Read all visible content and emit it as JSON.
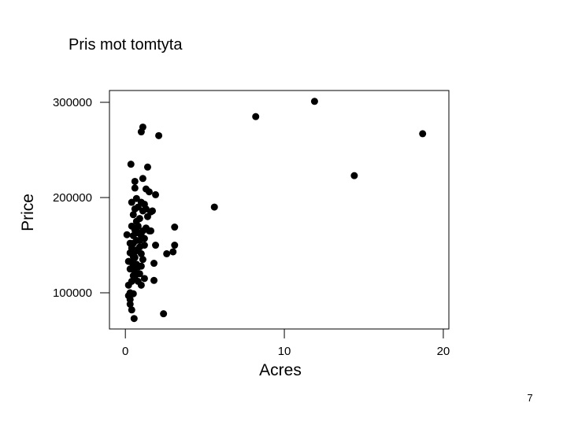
{
  "chart_data": {
    "type": "scatter",
    "title": "Pris mot tomtyta",
    "x_label": "Acres",
    "y_label": "Price",
    "page_number": "7",
    "color": "#000000",
    "x": [
      11.9,
      8.2,
      18.7,
      14.4,
      5.6,
      2.1,
      1.1,
      1.0,
      0.35,
      1.4,
      2.4,
      0.55,
      3.1,
      3.1,
      3.0,
      2.6,
      1.9,
      1.8,
      1.8,
      1.9,
      1.7,
      1.5,
      1.3,
      1.1,
      0.6,
      0.6,
      1.5,
      0.2,
      0.3,
      0.3,
      0.4,
      0.3,
      0.5,
      0.2,
      0.4,
      0.5,
      0.3,
      0.6,
      0.4,
      0.2,
      0.5,
      0.7,
      0.8,
      0.6,
      0.4,
      0.3,
      0.9,
      1.0,
      0.7,
      0.5,
      0.1,
      0.8,
      0.6,
      1.1,
      0.4,
      0.7,
      0.9,
      0.5,
      0.6,
      0.8,
      0.4,
      1.0,
      1.2,
      0.7,
      1.3,
      1.4,
      1.6,
      1.6,
      1.2,
      1.1,
      1.0,
      1.2,
      1.0,
      0.8,
      0.6,
      0.9,
      1.3,
      1.1,
      0.5,
      0.7,
      0.6,
      0.9,
      1.2,
      0.3,
      0.8,
      1.0,
      0.5
    ],
    "values": [
      301000,
      285000,
      267000,
      223000,
      190000,
      265000,
      274000,
      269000,
      235000,
      232000,
      78000,
      73000,
      169000,
      150000,
      143000,
      141000,
      150000,
      113000,
      131000,
      203000,
      186000,
      206000,
      209000,
      220000,
      217000,
      210000,
      165000,
      97000,
      93000,
      88000,
      82000,
      100000,
      99000,
      108000,
      112000,
      118000,
      125000,
      122000,
      132000,
      133000,
      138000,
      130000,
      127000,
      143000,
      147000,
      152000,
      148000,
      141000,
      155000,
      160000,
      161000,
      163000,
      166000,
      165000,
      170000,
      175000,
      178000,
      182000,
      188000,
      190000,
      195000,
      195000,
      193000,
      199000,
      188000,
      180000,
      185000,
      165000,
      157000,
      135000,
      128000,
      115000,
      108000,
      112000,
      137000,
      155000,
      168000,
      186000,
      128000,
      145000,
      117000,
      120000,
      150000,
      142000,
      170000,
      160000,
      152000
    ],
    "xlim": [
      -1,
      20.35
    ],
    "ylim": [
      62000,
      312400
    ],
    "xticks": [
      0,
      10,
      20
    ],
    "yticks": [
      100000,
      200000,
      300000
    ]
  }
}
